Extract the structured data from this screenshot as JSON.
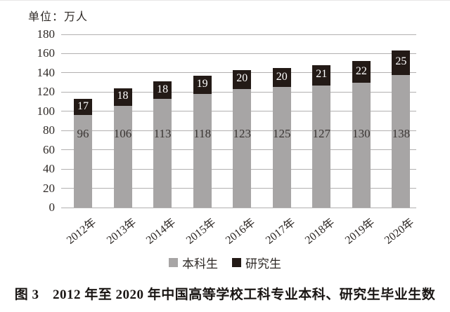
{
  "unit_label": "单位：万人",
  "caption": "图 3　2012 年至 2020 年中国高等学校工科专业本科、研究生毕业生数",
  "colors": {
    "undergrad_bar": "#a7a5a5",
    "grad_bar": "#231a16",
    "gridline": "#b2b0b0",
    "text": "#2e2926",
    "value_label_on_black": "#ffffff"
  },
  "legend": {
    "items": [
      {
        "label": "本科生",
        "color": "#a7a5a5"
      },
      {
        "label": "研究生",
        "color": "#231a16"
      }
    ]
  },
  "chart_data": {
    "type": "bar",
    "stacked": true,
    "title": "",
    "xlabel": "",
    "ylabel": "单位：万人",
    "categories": [
      "2012年",
      "2013年",
      "2014年",
      "2015年",
      "2016年",
      "2017年",
      "2018年",
      "2019年",
      "2020年"
    ],
    "series": [
      {
        "name": "本科生",
        "color": "#a7a5a5",
        "values": [
          96,
          106,
          113,
          118,
          123,
          125,
          127,
          130,
          138
        ]
      },
      {
        "name": "研究生",
        "color": "#231a16",
        "values": [
          17,
          18,
          18,
          19,
          20,
          20,
          21,
          22,
          25
        ]
      }
    ],
    "totals": [
      113,
      124,
      131,
      137,
      143,
      145,
      148,
      152,
      163
    ],
    "ylim": [
      0,
      180
    ],
    "ytick_step": 20,
    "yticks": [
      0,
      20,
      40,
      60,
      80,
      100,
      120,
      140,
      160,
      180
    ],
    "grid": true,
    "legend_position": "bottom"
  }
}
